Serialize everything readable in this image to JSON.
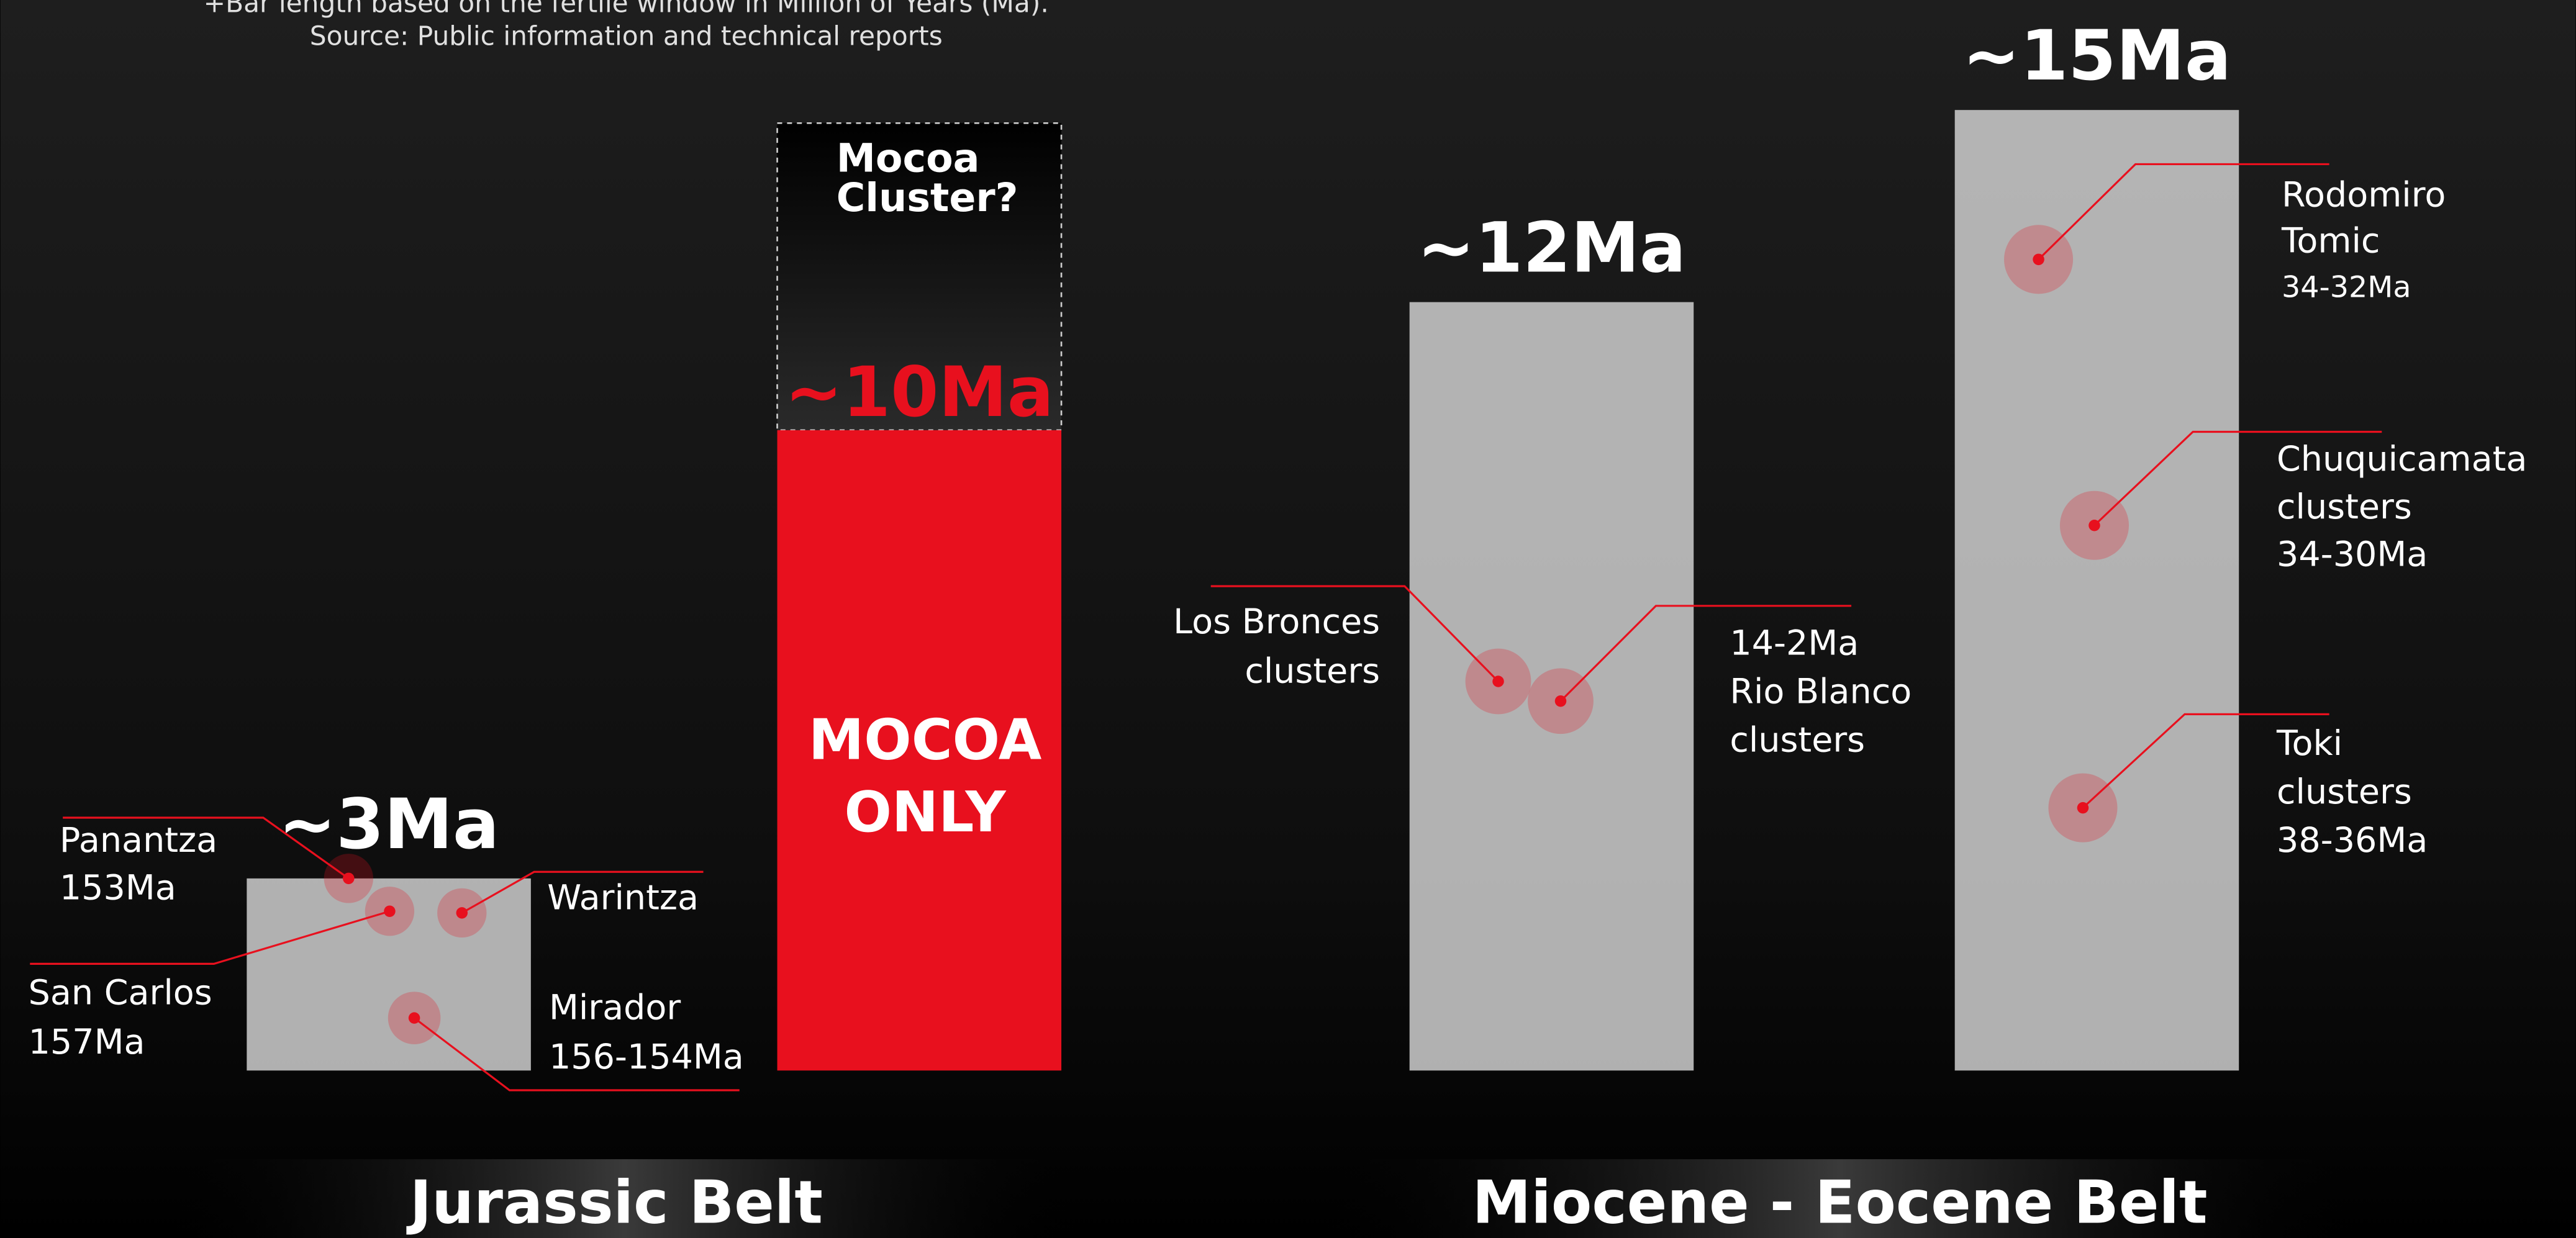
{
  "notes": [
    "+Bar length based on the fertile window in Million of Years (Ma).",
    "Source: Public information and technical reports"
  ],
  "chart_data": {
    "type": "bar",
    "values": [
      3,
      10,
      12,
      15
    ],
    "value_labels": [
      "~3Ma",
      "~10Ma",
      "~12Ma",
      "~15Ma"
    ],
    "colors": [
      "#cfcfcf",
      "#e8101e",
      "#cfcfcf",
      "#cfcfcf"
    ]
  },
  "mocoa": {
    "question": [
      "Mocoa",
      "Cluster?"
    ],
    "label": [
      "MOCOA",
      "ONLY"
    ]
  },
  "clusters": [
    {
      "lines": [
        "Panantza",
        "153Ma"
      ]
    },
    {
      "lines": [
        "San Carlos",
        "157Ma"
      ]
    },
    {
      "lines": [
        "Warintza"
      ]
    },
    {
      "lines": [
        "Mirador",
        "156-154Ma"
      ]
    },
    {
      "lines": [
        "Los Bronces",
        "clusters"
      ]
    },
    {
      "lines": [
        "14-2Ma",
        "Rio Blanco",
        "clusters"
      ]
    },
    {
      "lines": [
        "Rodomiro",
        "Tomic",
        "34-32Ma"
      ]
    },
    {
      "lines": [
        "Chuquicamata",
        "clusters",
        "34-30Ma"
      ]
    },
    {
      "lines": [
        "Toki",
        "clusters",
        "38-36Ma"
      ]
    }
  ],
  "belts": [
    "Jurassic Belt",
    "Miocene - Eocene Belt"
  ]
}
